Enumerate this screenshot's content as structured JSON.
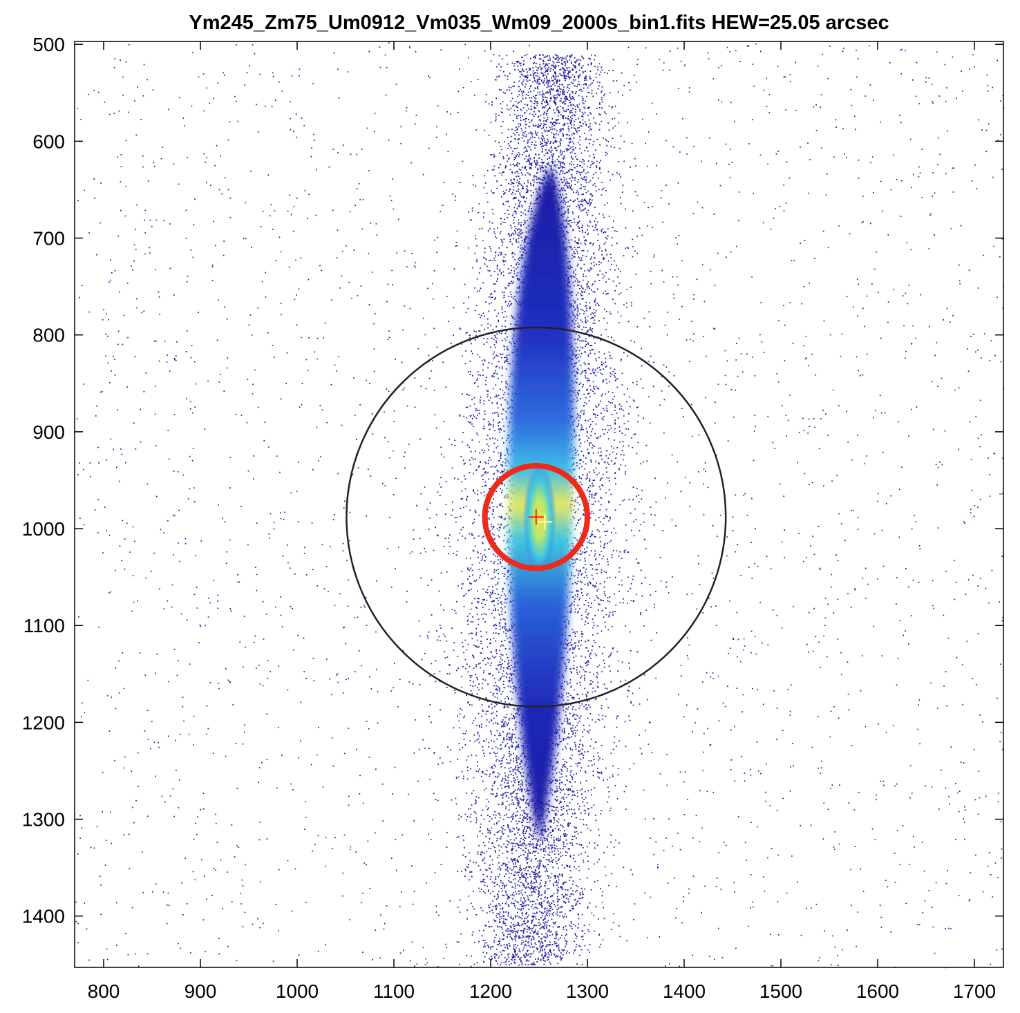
{
  "chart_data": {
    "type": "heatmap",
    "title": "Ym245_Zm75_Um0912_Vm035_Wm09_2000s_bin1.fits  HEW=25.05 arcsec",
    "xlabel": "",
    "ylabel": "",
    "xlim": [
      770,
      1730
    ],
    "ylim": [
      497,
      1453
    ],
    "y_reversed": true,
    "xticks": [
      800,
      900,
      1000,
      1100,
      1200,
      1300,
      1400,
      1500,
      1600,
      1700
    ],
    "yticks": [
      500,
      600,
      700,
      800,
      900,
      1000,
      1100,
      1200,
      1300,
      1400
    ],
    "grid": false,
    "colormap": "jet (low counts dark blue, high counts yellow-red)",
    "background_color": "#ffffff",
    "spot": {
      "center": [
        1252,
        990
      ],
      "core_half_width_x": 28,
      "core_top": 625,
      "core_bottom": 1325,
      "halo_half_width_x": 110,
      "halo_top": 510,
      "halo_bottom": 1450
    },
    "circles": [
      {
        "name": "HEW circle",
        "center": [
          1247,
          988
        ],
        "radius": 53,
        "color": "#ee2a1a"
      },
      {
        "name": "outer circle",
        "center": [
          1247,
          988
        ],
        "radius": 196,
        "color": "#222222"
      }
    ],
    "markers": [
      {
        "shape": "plus",
        "position": [
          1247,
          988
        ],
        "color": "#ff2020"
      },
      {
        "shape": "plus",
        "position": [
          1256,
          993
        ],
        "color": "#ffffa0"
      }
    ]
  }
}
